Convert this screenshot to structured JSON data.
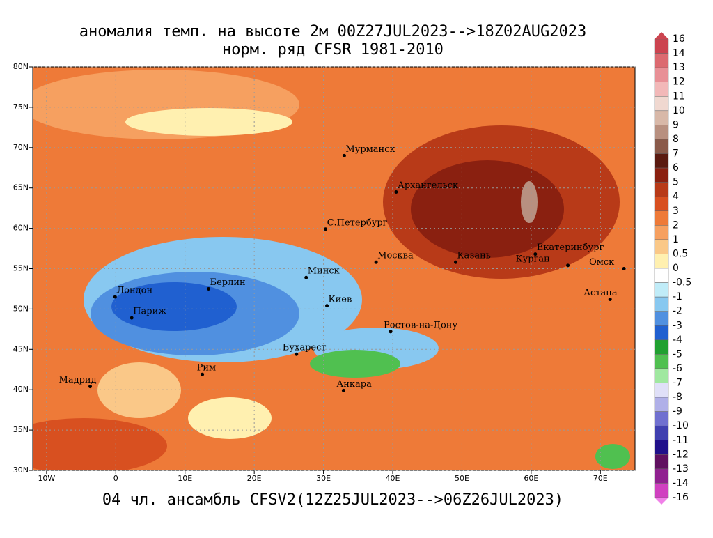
{
  "header": {
    "title": "аномалия темп. на высоте 2м 00Z27JUL2023-->18Z02AUG2023",
    "subtitle": "норм. ряд CFSR 1981-2010"
  },
  "footer": "04 чл. ансамбль CFSV2(12Z25JUL2023-->06Z26JUL2023)",
  "map": {
    "xlim": [
      -12,
      75
    ],
    "ylim": [
      30,
      80
    ],
    "xticks": [
      {
        "value": -10,
        "label": "10W"
      },
      0,
      {
        "value": 10,
        "label": "10E"
      },
      {
        "value": 20,
        "label": "20E"
      },
      {
        "value": 30,
        "label": "30E"
      },
      {
        "value": 40,
        "label": "40E"
      },
      {
        "value": 50,
        "label": "50E"
      },
      {
        "value": 60,
        "label": "60E"
      },
      {
        "value": 70,
        "label": "70E"
      }
    ],
    "yticks": [
      {
        "value": 30,
        "label": "30N"
      },
      {
        "value": 35,
        "label": "35N"
      },
      {
        "value": 40,
        "label": "40N"
      },
      {
        "value": 45,
        "label": "45N"
      },
      {
        "value": 50,
        "label": "50N"
      },
      {
        "value": 55,
        "label": "55N"
      },
      {
        "value": 60,
        "label": "60N"
      },
      {
        "value": 65,
        "label": "65N"
      },
      {
        "value": 70,
        "label": "70N"
      },
      {
        "value": 75,
        "label": "75N"
      },
      {
        "value": 80,
        "label": "80N"
      }
    ],
    "cities": [
      "Мурманск",
      "Архангельск",
      "С.Петербург",
      "Москва",
      "Казань",
      "Екатеринбург",
      "Курган",
      "Омск",
      "Астана",
      "Минск",
      "Киев",
      "Берлин",
      "Лондон",
      "Париж",
      "Ростов-на-Дону",
      "Бухарест",
      "Мадрид",
      "Рим",
      "Анкара"
    ]
  },
  "colorbar": {
    "levels": [
      16,
      14,
      13,
      12,
      11,
      10,
      9,
      8,
      7,
      6,
      5,
      4,
      3,
      2,
      1,
      0.5,
      0,
      -0.5,
      -1,
      -2,
      -3,
      -4,
      -5,
      -6,
      -7,
      -8,
      -9,
      -10,
      -11,
      -12,
      -13,
      -14,
      -16
    ],
    "colors": [
      "#cc4450",
      "#dc6a70",
      "#e89096",
      "#f2b8b8",
      "#f0d8d0",
      "#d8b8a8",
      "#b89080",
      "#8a5a4a",
      "#5a1a10",
      "#8a2010",
      "#b83a18",
      "#d85020",
      "#ee7a38",
      "#f6a060",
      "#fac888",
      "#fff0b0",
      "#ffffff",
      "#c0ecf8",
      "#88c8f0",
      "#5090e0",
      "#2060d0",
      "#20a030",
      "#50c050",
      "#a0e8a0",
      "#e0e0f8",
      "#b0b0e8",
      "#7070d0",
      "#4040b0",
      "#20108a",
      "#601060",
      "#902090",
      "#d040c0",
      "#f080e8"
    ]
  }
}
